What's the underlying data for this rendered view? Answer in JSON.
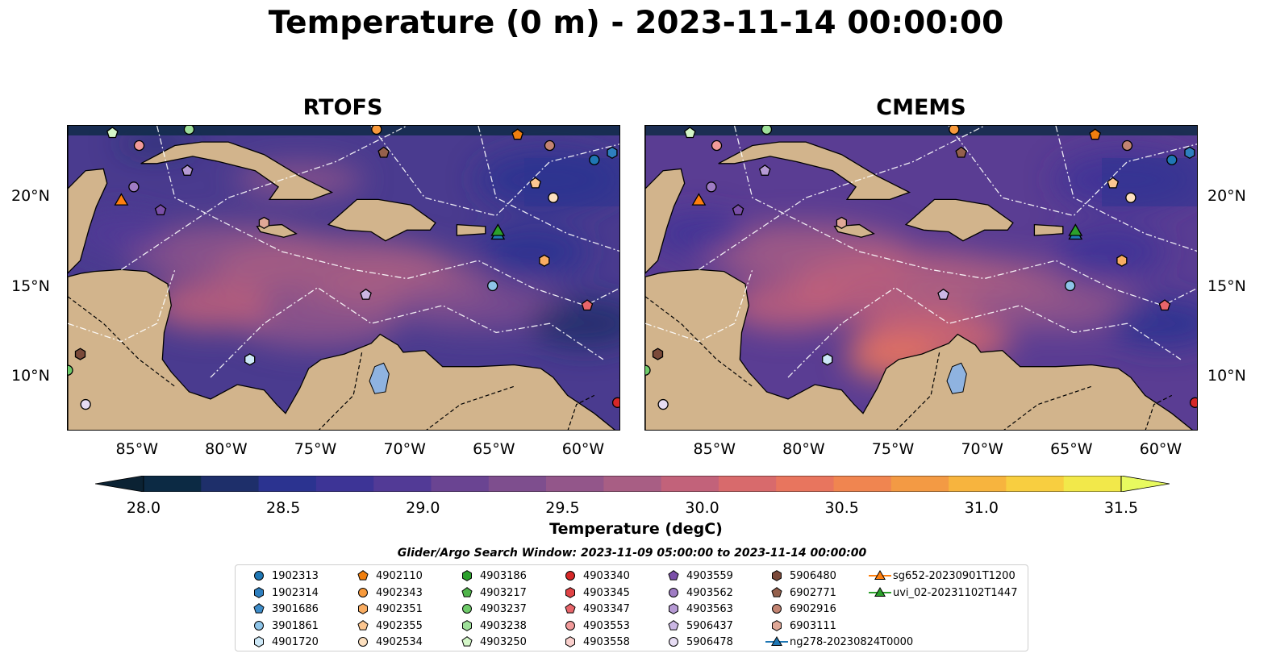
{
  "title": "Temperature (0 m) - 2023-11-14 00:00:00",
  "panels": [
    {
      "name": "RTOFS"
    },
    {
      "name": "CMEMS"
    }
  ],
  "map_extent": {
    "lon": [
      -89,
      -58
    ],
    "lat": [
      7,
      24
    ]
  },
  "lat_ticks": [
    "20°N",
    "15°N",
    "10°N"
  ],
  "lon_ticks": [
    "85°W",
    "80°W",
    "75°W",
    "70°W",
    "65°W",
    "60°W"
  ],
  "colorbar": {
    "label": "Temperature (degC)",
    "ticks": [
      "28.0",
      "28.5",
      "29.0",
      "29.5",
      "30.0",
      "30.5",
      "31.0",
      "31.5"
    ],
    "range": [
      28.0,
      31.5
    ],
    "colors": [
      "#0c2a44",
      "#1e2f6a",
      "#2b3390",
      "#3d3496",
      "#523a96",
      "#6a4492",
      "#7e4e8e",
      "#93568a",
      "#a85e84",
      "#c2627a",
      "#d86a6c",
      "#e8755e",
      "#f08550",
      "#f39a44",
      "#f7b43e",
      "#f8ce40",
      "#f2e84a"
    ],
    "extend_low": "#0b2233",
    "extend_high": "#e8fa5f"
  },
  "search_window": "Glider/Argo Search Window: 2023-11-09 05:00:00 to 2023-11-14 00:00:00",
  "legend": [
    {
      "label": "1902313",
      "marker": "circle",
      "color": "#1f77b4"
    },
    {
      "label": "1902314",
      "marker": "hexagon",
      "color": "#2e7fbf"
    },
    {
      "label": "3901686",
      "marker": "pentagon",
      "color": "#3d8cc9"
    },
    {
      "label": "3901861",
      "marker": "circle",
      "color": "#8ec4e8"
    },
    {
      "label": "4901720",
      "marker": "hexagon",
      "color": "#cde8f7"
    },
    {
      "label": "4902110",
      "marker": "pentagon",
      "color": "#f07f0f"
    },
    {
      "label": "4902343",
      "marker": "circle",
      "color": "#f89a3c"
    },
    {
      "label": "4902351",
      "marker": "hexagon",
      "color": "#f9ad62"
    },
    {
      "label": "4902355",
      "marker": "pentagon",
      "color": "#fcc690"
    },
    {
      "label": "4902534",
      "marker": "circle",
      "color": "#fde0bf"
    },
    {
      "label": "4903186",
      "marker": "hexagon",
      "color": "#2ca02c"
    },
    {
      "label": "4903217",
      "marker": "pentagon",
      "color": "#4fb44a"
    },
    {
      "label": "4903237",
      "marker": "circle",
      "color": "#6fcb6a"
    },
    {
      "label": "4903238",
      "marker": "hexagon",
      "color": "#9fe09a"
    },
    {
      "label": "4903250",
      "marker": "pentagon",
      "color": "#d4f7c8"
    },
    {
      "label": "4903340",
      "marker": "circle",
      "color": "#d62728"
    },
    {
      "label": "4903345",
      "marker": "hexagon",
      "color": "#e04446"
    },
    {
      "label": "4903347",
      "marker": "pentagon",
      "color": "#e8656a"
    },
    {
      "label": "4903553",
      "marker": "circle",
      "color": "#f19a9a"
    },
    {
      "label": "4903558",
      "marker": "hexagon",
      "color": "#f9cfcc"
    },
    {
      "label": "4903559",
      "marker": "pentagon",
      "color": "#7a4fa8"
    },
    {
      "label": "4903562",
      "marker": "circle",
      "color": "#9f7cc4"
    },
    {
      "label": "4903563",
      "marker": "hexagon",
      "color": "#b69ad4"
    },
    {
      "label": "5906437",
      "marker": "pentagon",
      "color": "#cbb7e4"
    },
    {
      "label": "5906478",
      "marker": "circle",
      "color": "#e6dcf3"
    },
    {
      "label": "5906480",
      "marker": "hexagon",
      "color": "#7b4a3a"
    },
    {
      "label": "6902771",
      "marker": "pentagon",
      "color": "#94604c"
    },
    {
      "label": "6902916",
      "marker": "circle",
      "color": "#c38472"
    },
    {
      "label": "6903111",
      "marker": "hexagon",
      "color": "#e0a897"
    },
    {
      "label": "ng278-20230824T0000",
      "marker": "triangle-line",
      "color": "#1f77b4"
    },
    {
      "label": "sg652-20230901T1200",
      "marker": "triangle-line",
      "color": "#ff7f0e"
    },
    {
      "label": "uvi_02-20231102T1447",
      "marker": "triangle-line",
      "color": "#2ca02c"
    }
  ],
  "floats": [
    {
      "lon": -86.5,
      "lat": 23.6,
      "marker": "pentagon",
      "color": "#d4f7c8"
    },
    {
      "lon": -82.2,
      "lat": 23.8,
      "marker": "circle",
      "color": "#9fe09a"
    },
    {
      "lon": -85.0,
      "lat": 22.9,
      "marker": "circle",
      "color": "#f19a9a"
    },
    {
      "lon": -82.3,
      "lat": 21.5,
      "marker": "pentagon",
      "color": "#b69ad4"
    },
    {
      "lon": -71.7,
      "lat": 23.8,
      "marker": "circle",
      "color": "#f89a3c"
    },
    {
      "lon": -71.3,
      "lat": 22.5,
      "marker": "pentagon",
      "color": "#94604c"
    },
    {
      "lon": -63.8,
      "lat": 23.5,
      "marker": "pentagon",
      "color": "#f07f0f"
    },
    {
      "lon": -62.0,
      "lat": 22.9,
      "marker": "circle",
      "color": "#c38472"
    },
    {
      "lon": -59.5,
      "lat": 22.1,
      "marker": "circle",
      "color": "#1f77b4"
    },
    {
      "lon": -58.5,
      "lat": 22.5,
      "marker": "hexagon",
      "color": "#2e7fbf"
    },
    {
      "lon": -62.8,
      "lat": 20.8,
      "marker": "pentagon",
      "color": "#fcc690"
    },
    {
      "lon": -61.8,
      "lat": 20.0,
      "marker": "circle",
      "color": "#fde0bf"
    },
    {
      "lon": -85.3,
      "lat": 20.6,
      "marker": "circle",
      "color": "#9f7cc4"
    },
    {
      "lon": -83.8,
      "lat": 19.3,
      "marker": "pentagon",
      "color": "#7a4fa8"
    },
    {
      "lon": -78.0,
      "lat": 18.6,
      "marker": "hexagon",
      "color": "#e0a897"
    },
    {
      "lon": -62.3,
      "lat": 16.5,
      "marker": "hexagon",
      "color": "#f9ad62"
    },
    {
      "lon": -65.2,
      "lat": 15.1,
      "marker": "circle",
      "color": "#8ec4e8"
    },
    {
      "lon": -72.3,
      "lat": 14.6,
      "marker": "pentagon",
      "color": "#cbb7e4"
    },
    {
      "lon": -59.9,
      "lat": 14.0,
      "marker": "pentagon",
      "color": "#e8656a"
    },
    {
      "lon": -88.3,
      "lat": 11.3,
      "marker": "hexagon",
      "color": "#7b4a3a"
    },
    {
      "lon": -78.8,
      "lat": 11.0,
      "marker": "hexagon",
      "color": "#cde8f7"
    },
    {
      "lon": -88.0,
      "lat": 8.5,
      "marker": "circle",
      "color": "#e6dcf3"
    },
    {
      "lon": -58.2,
      "lat": 8.6,
      "marker": "circle",
      "color": "#d62728"
    },
    {
      "lon": -89.0,
      "lat": 10.4,
      "marker": "circle",
      "color": "#6fcb6a"
    }
  ],
  "gliders": [
    {
      "lon": -86.0,
      "lat": 19.8,
      "color": "#ff7f0e"
    },
    {
      "lon": -64.9,
      "lat": 17.9,
      "color": "#1f77b4"
    },
    {
      "lon": -64.9,
      "lat": 18.1,
      "color": "#2ca02c"
    }
  ]
}
